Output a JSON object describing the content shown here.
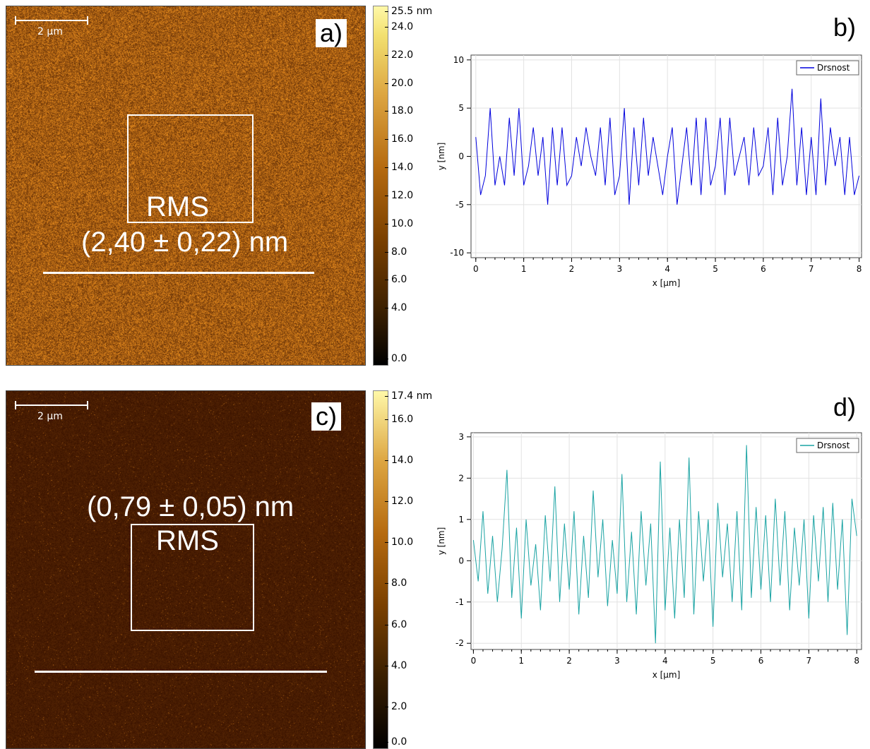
{
  "panels": {
    "a": {
      "tag": "a)",
      "scalebar": "2 µm",
      "rms_title": "RMS",
      "rms_value": "(2,40 ± 0,22) nm",
      "colorbar": {
        "max_label": "25.5 nm",
        "ticks": [
          "24.0",
          "22.0",
          "20.0",
          "18.0",
          "16.0",
          "14.0",
          "12.0",
          "10.0",
          "8.0",
          "6.0",
          "4.0",
          "0.0"
        ],
        "tick_values": [
          24,
          22,
          20,
          18,
          16,
          14,
          12,
          10,
          8,
          6,
          4,
          0
        ],
        "max": 25.5
      }
    },
    "c": {
      "tag": "c)",
      "scalebar": "2 µm",
      "rms_title": "RMS",
      "rms_value": "(0,79 ± 0,05) nm",
      "colorbar": {
        "max_label": "17.4 nm",
        "ticks": [
          "16.0",
          "14.0",
          "12.0",
          "10.0",
          "8.0",
          "6.0",
          "4.0",
          "2.0",
          "0.0"
        ],
        "tick_values": [
          16,
          14,
          12,
          10,
          8,
          6,
          4,
          2,
          0
        ],
        "max": 17.4
      }
    },
    "b": {
      "tag": "b)"
    },
    "d": {
      "tag": "d)"
    }
  },
  "chart_data": [
    {
      "id": "b",
      "type": "line",
      "xlabel": "x [µm]",
      "ylabel": "y [nm]",
      "xlim": [
        -0.1,
        8.05
      ],
      "ylim": [
        -10.5,
        10.5
      ],
      "xticks": [
        0,
        1,
        2,
        3,
        4,
        5,
        6,
        7,
        8
      ],
      "yticks": [
        -10,
        -5,
        0,
        5,
        10
      ],
      "xtick_labels": [
        "0",
        "1",
        "2",
        "3",
        "4",
        "5",
        "6",
        "7",
        "8"
      ],
      "ytick_labels": [
        "-10",
        "-5",
        "0",
        "5",
        "10"
      ],
      "color": "#0000dd",
      "grid": true,
      "legend": "top-right",
      "series": [
        {
          "name": "Drsnost",
          "x": [
            0,
            0.1,
            0.2,
            0.3,
            0.4,
            0.5,
            0.6,
            0.7,
            0.8,
            0.9,
            1.0,
            1.1,
            1.2,
            1.3,
            1.4,
            1.5,
            1.6,
            1.7,
            1.8,
            1.9,
            2.0,
            2.1,
            2.2,
            2.3,
            2.4,
            2.5,
            2.6,
            2.7,
            2.8,
            2.9,
            3.0,
            3.1,
            3.2,
            3.3,
            3.4,
            3.5,
            3.6,
            3.7,
            3.8,
            3.9,
            4.0,
            4.1,
            4.2,
            4.3,
            4.4,
            4.5,
            4.6,
            4.7,
            4.8,
            4.9,
            5.0,
            5.1,
            5.2,
            5.3,
            5.4,
            5.5,
            5.6,
            5.7,
            5.8,
            5.9,
            6.0,
            6.1,
            6.2,
            6.3,
            6.4,
            6.5,
            6.6,
            6.7,
            6.8,
            6.9,
            7.0,
            7.1,
            7.2,
            7.3,
            7.4,
            7.5,
            7.6,
            7.7,
            7.8,
            7.9,
            8.0
          ],
          "y": [
            2,
            -4,
            -2,
            5,
            -3,
            0,
            -3,
            4,
            -2,
            5,
            -3,
            -1,
            3,
            -2,
            2,
            -5,
            3,
            -3,
            3,
            -3,
            -2,
            2,
            -1,
            3,
            0,
            -2,
            3,
            -3,
            4,
            -4,
            -2,
            5,
            -5,
            3,
            -3,
            4,
            -2,
            2,
            -1,
            -4,
            0,
            3,
            -5,
            -1,
            3,
            -3,
            4,
            -4,
            4,
            -3,
            -1,
            4,
            -4,
            4,
            -2,
            0,
            2,
            -3,
            3,
            -2,
            -1,
            3,
            -4,
            4,
            -3,
            0,
            7,
            -3,
            3,
            -4,
            2,
            -4,
            6,
            -3,
            3,
            -1,
            2,
            -4,
            2,
            -4,
            -2
          ]
        }
      ]
    },
    {
      "id": "d",
      "type": "line",
      "xlabel": "x [µm]",
      "ylabel": "y [nm]",
      "xlim": [
        -0.05,
        8.1
      ],
      "ylim": [
        -2.15,
        3.1
      ],
      "xticks": [
        0,
        1,
        2,
        3,
        4,
        5,
        6,
        7,
        8
      ],
      "yticks": [
        -2,
        -1,
        0,
        1,
        2,
        3
      ],
      "xtick_labels": [
        "0",
        "1",
        "2",
        "3",
        "4",
        "5",
        "6",
        "7",
        "8"
      ],
      "ytick_labels": [
        "-2",
        "-1",
        "0",
        "1",
        "2",
        "3"
      ],
      "color": "#1aa3a3",
      "grid": true,
      "legend": "top-right",
      "series": [
        {
          "name": "Drsnost",
          "x": [
            0,
            0.1,
            0.2,
            0.3,
            0.4,
            0.5,
            0.6,
            0.7,
            0.8,
            0.9,
            1.0,
            1.1,
            1.2,
            1.3,
            1.4,
            1.5,
            1.6,
            1.7,
            1.8,
            1.9,
            2.0,
            2.1,
            2.2,
            2.3,
            2.4,
            2.5,
            2.6,
            2.7,
            2.8,
            2.9,
            3.0,
            3.1,
            3.2,
            3.3,
            3.4,
            3.5,
            3.6,
            3.7,
            3.8,
            3.9,
            4.0,
            4.1,
            4.2,
            4.3,
            4.4,
            4.5,
            4.6,
            4.7,
            4.8,
            4.9,
            5.0,
            5.1,
            5.2,
            5.3,
            5.4,
            5.5,
            5.6,
            5.7,
            5.8,
            5.9,
            6.0,
            6.1,
            6.2,
            6.3,
            6.4,
            6.5,
            6.6,
            6.7,
            6.8,
            6.9,
            7.0,
            7.1,
            7.2,
            7.3,
            7.4,
            7.5,
            7.6,
            7.7,
            7.8,
            7.9,
            8.0
          ],
          "y": [
            0.5,
            -0.5,
            1.2,
            -0.8,
            0.6,
            -1.0,
            0.3,
            2.2,
            -0.9,
            0.8,
            -1.4,
            1.0,
            -0.6,
            0.4,
            -1.2,
            1.1,
            -0.5,
            1.8,
            -1.0,
            0.9,
            -0.7,
            1.2,
            -1.3,
            0.6,
            -0.9,
            1.7,
            -0.4,
            1.0,
            -1.1,
            0.5,
            -0.8,
            2.1,
            -1.0,
            0.7,
            -1.3,
            1.2,
            -0.6,
            0.9,
            -2.0,
            2.4,
            -1.2,
            0.8,
            -1.4,
            1.0,
            -0.9,
            2.5,
            -1.3,
            1.2,
            -0.5,
            1.0,
            -1.6,
            1.4,
            -0.4,
            0.9,
            -1.0,
            1.2,
            -1.2,
            2.8,
            -0.9,
            1.3,
            -0.7,
            1.1,
            -1.0,
            1.5,
            -0.6,
            1.2,
            -1.2,
            0.8,
            -0.6,
            1.0,
            -1.4,
            1.1,
            -0.5,
            1.3,
            -1.0,
            1.4,
            -0.7,
            1.0,
            -1.8,
            1.5,
            0.6
          ]
        }
      ]
    }
  ]
}
